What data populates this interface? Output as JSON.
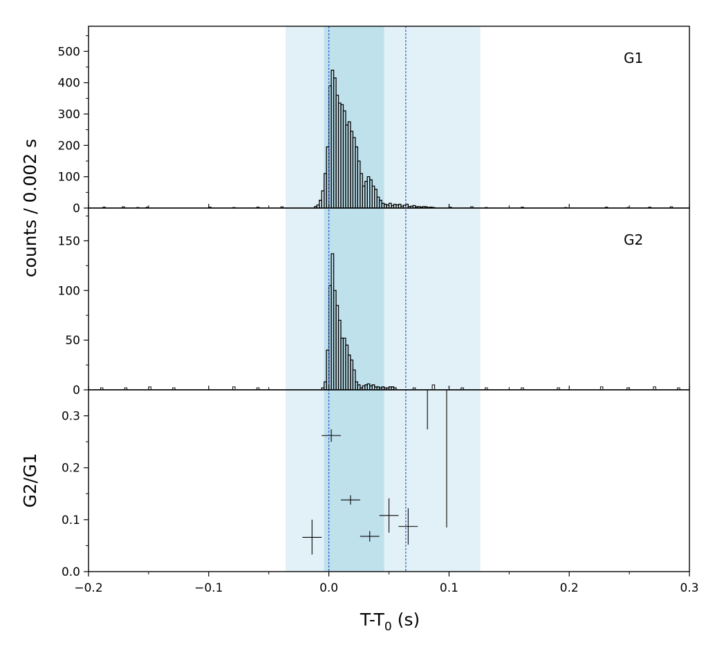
{
  "chart_data": {
    "type": "histogram-stack",
    "xlabel_main": "T-T",
    "xlabel_sub": "0",
    "xlabel_unit": " (s)",
    "ylabel_counts": "counts /  0.002 s",
    "xlim": [
      -0.2,
      0.3
    ],
    "x_ticks": [
      -0.2,
      -0.1,
      0.0,
      0.1,
      0.2,
      0.3
    ],
    "x_tick_labels": [
      "−0.2",
      "−0.1",
      "0.0",
      "0.1",
      "0.2",
      "0.3"
    ],
    "shaded_regions": [
      {
        "name": "outer-window",
        "x0": -0.036,
        "x1": 0.126,
        "color": "#cfe8f1"
      },
      {
        "name": "inner-window",
        "x0": -0.004,
        "x1": 0.046,
        "color": "#a9d7e4"
      }
    ],
    "vlines": [
      {
        "x": 0.0,
        "color": "#2a55d6"
      },
      {
        "x": 0.064,
        "color": "#2a55d6"
      }
    ],
    "panels": [
      {
        "name": "G1",
        "label": "G1",
        "ylim": [
          0,
          580
        ],
        "y_ticks": [
          0,
          100,
          200,
          300,
          400,
          500
        ],
        "y_tick_labels": [
          "0",
          "100",
          "200",
          "300",
          "400",
          "500"
        ],
        "bin_width": 0.002,
        "bins": [
          {
            "x": -0.012,
            "y": 5
          },
          {
            "x": -0.01,
            "y": 10
          },
          {
            "x": -0.008,
            "y": 25
          },
          {
            "x": -0.006,
            "y": 55
          },
          {
            "x": -0.004,
            "y": 110
          },
          {
            "x": -0.002,
            "y": 195
          },
          {
            "x": 0.0,
            "y": 390
          },
          {
            "x": 0.002,
            "y": 440
          },
          {
            "x": 0.004,
            "y": 415
          },
          {
            "x": 0.006,
            "y": 360
          },
          {
            "x": 0.008,
            "y": 335
          },
          {
            "x": 0.01,
            "y": 330
          },
          {
            "x": 0.012,
            "y": 310
          },
          {
            "x": 0.014,
            "y": 265
          },
          {
            "x": 0.016,
            "y": 275
          },
          {
            "x": 0.018,
            "y": 245
          },
          {
            "x": 0.02,
            "y": 225
          },
          {
            "x": 0.022,
            "y": 195
          },
          {
            "x": 0.024,
            "y": 150
          },
          {
            "x": 0.026,
            "y": 110
          },
          {
            "x": 0.028,
            "y": 70
          },
          {
            "x": 0.03,
            "y": 85
          },
          {
            "x": 0.032,
            "y": 100
          },
          {
            "x": 0.034,
            "y": 90
          },
          {
            "x": 0.036,
            "y": 70
          },
          {
            "x": 0.038,
            "y": 60
          },
          {
            "x": 0.04,
            "y": 35
          },
          {
            "x": 0.042,
            "y": 25
          },
          {
            "x": 0.044,
            "y": 15
          },
          {
            "x": 0.046,
            "y": 12
          },
          {
            "x": 0.048,
            "y": 10
          },
          {
            "x": 0.05,
            "y": 15
          },
          {
            "x": 0.052,
            "y": 8
          },
          {
            "x": 0.054,
            "y": 12
          },
          {
            "x": 0.056,
            "y": 10
          },
          {
            "x": 0.058,
            "y": 12
          },
          {
            "x": 0.06,
            "y": 6
          },
          {
            "x": 0.062,
            "y": 9
          },
          {
            "x": 0.064,
            "y": 12
          },
          {
            "x": 0.066,
            "y": 5
          },
          {
            "x": 0.068,
            "y": 6
          },
          {
            "x": 0.07,
            "y": 8
          },
          {
            "x": 0.072,
            "y": 4
          },
          {
            "x": 0.074,
            "y": 5
          },
          {
            "x": 0.076,
            "y": 3
          },
          {
            "x": 0.078,
            "y": 5
          },
          {
            "x": 0.08,
            "y": 4
          },
          {
            "x": 0.082,
            "y": 2
          },
          {
            "x": 0.084,
            "y": 3
          },
          {
            "x": 0.086,
            "y": 2
          }
        ],
        "baseline_blips": [
          {
            "x": -0.188,
            "y": 3
          },
          {
            "x": -0.172,
            "y": 4
          },
          {
            "x": -0.16,
            "y": 2
          },
          {
            "x": -0.152,
            "y": 3
          },
          {
            "x": -0.1,
            "y": 3
          },
          {
            "x": -0.08,
            "y": 2
          },
          {
            "x": -0.06,
            "y": 3
          },
          {
            "x": -0.04,
            "y": 4
          },
          {
            "x": 0.1,
            "y": 3
          },
          {
            "x": 0.118,
            "y": 4
          },
          {
            "x": 0.13,
            "y": 2
          },
          {
            "x": 0.16,
            "y": 3
          },
          {
            "x": 0.196,
            "y": 2
          },
          {
            "x": 0.23,
            "y": 3
          },
          {
            "x": 0.248,
            "y": 2
          },
          {
            "x": 0.266,
            "y": 3
          },
          {
            "x": 0.284,
            "y": 4
          }
        ]
      },
      {
        "name": "G2",
        "label": "G2",
        "ylim": [
          0,
          183
        ],
        "y_ticks": [
          0,
          50,
          100,
          150
        ],
        "y_tick_labels": [
          "0",
          "50",
          "100",
          "150"
        ],
        "bin_width": 0.002,
        "bins": [
          {
            "x": -0.006,
            "y": 2
          },
          {
            "x": -0.004,
            "y": 8
          },
          {
            "x": -0.002,
            "y": 40
          },
          {
            "x": 0.0,
            "y": 105
          },
          {
            "x": 0.002,
            "y": 137
          },
          {
            "x": 0.004,
            "y": 100
          },
          {
            "x": 0.006,
            "y": 85
          },
          {
            "x": 0.008,
            "y": 70
          },
          {
            "x": 0.01,
            "y": 52
          },
          {
            "x": 0.012,
            "y": 52
          },
          {
            "x": 0.014,
            "y": 45
          },
          {
            "x": 0.016,
            "y": 35
          },
          {
            "x": 0.018,
            "y": 30
          },
          {
            "x": 0.02,
            "y": 20
          },
          {
            "x": 0.022,
            "y": 8
          },
          {
            "x": 0.024,
            "y": 5
          },
          {
            "x": 0.026,
            "y": 2
          },
          {
            "x": 0.028,
            "y": 4
          },
          {
            "x": 0.03,
            "y": 5
          },
          {
            "x": 0.032,
            "y": 6
          },
          {
            "x": 0.034,
            "y": 4
          },
          {
            "x": 0.036,
            "y": 5
          },
          {
            "x": 0.038,
            "y": 3
          },
          {
            "x": 0.04,
            "y": 3
          },
          {
            "x": 0.042,
            "y": 2
          },
          {
            "x": 0.044,
            "y": 3
          },
          {
            "x": 0.046,
            "y": 2
          },
          {
            "x": 0.048,
            "y": 2
          },
          {
            "x": 0.05,
            "y": 3
          },
          {
            "x": 0.052,
            "y": 3
          },
          {
            "x": 0.054,
            "y": 2
          }
        ],
        "baseline_blips": [
          {
            "x": -0.19,
            "y": 2
          },
          {
            "x": -0.17,
            "y": 2
          },
          {
            "x": -0.15,
            "y": 3
          },
          {
            "x": -0.13,
            "y": 2
          },
          {
            "x": -0.08,
            "y": 3
          },
          {
            "x": -0.06,
            "y": 2
          },
          {
            "x": 0.07,
            "y": 2
          },
          {
            "x": 0.086,
            "y": 5
          },
          {
            "x": 0.11,
            "y": 2
          },
          {
            "x": 0.13,
            "y": 2
          },
          {
            "x": 0.16,
            "y": 2
          },
          {
            "x": 0.19,
            "y": 2
          },
          {
            "x": 0.226,
            "y": 3
          },
          {
            "x": 0.248,
            "y": 2
          },
          {
            "x": 0.27,
            "y": 3
          },
          {
            "x": 0.29,
            "y": 2
          }
        ]
      },
      {
        "name": "ratio",
        "ylabel": "G2/G1",
        "ylim": [
          0,
          0.35
        ],
        "y_ticks": [
          0.0,
          0.1,
          0.2,
          0.3
        ],
        "y_tick_labels": [
          "0.0",
          "0.1",
          "0.2",
          "0.3"
        ],
        "points": [
          {
            "x": -0.014,
            "y": 0.066,
            "xerr": 0.008,
            "y_low": 0.033,
            "y_high": 0.1
          },
          {
            "x": 0.002,
            "y": 0.262,
            "xerr": 0.008,
            "y_low": 0.25,
            "y_high": 0.274
          },
          {
            "x": 0.018,
            "y": 0.138,
            "xerr": 0.008,
            "y_low": 0.129,
            "y_high": 0.147
          },
          {
            "x": 0.034,
            "y": 0.068,
            "xerr": 0.008,
            "y_low": 0.058,
            "y_high": 0.078
          },
          {
            "x": 0.05,
            "y": 0.108,
            "xerr": 0.008,
            "y_low": 0.075,
            "y_high": 0.141
          },
          {
            "x": 0.066,
            "y": 0.087,
            "xerr": 0.008,
            "y_low": 0.052,
            "y_high": 0.122
          }
        ],
        "error_lines": [
          {
            "x": 0.082,
            "y_low": 0.274,
            "y_high": 0.35
          },
          {
            "x": 0.098,
            "y_low": 0.085,
            "y_high": 0.35
          }
        ]
      }
    ]
  }
}
